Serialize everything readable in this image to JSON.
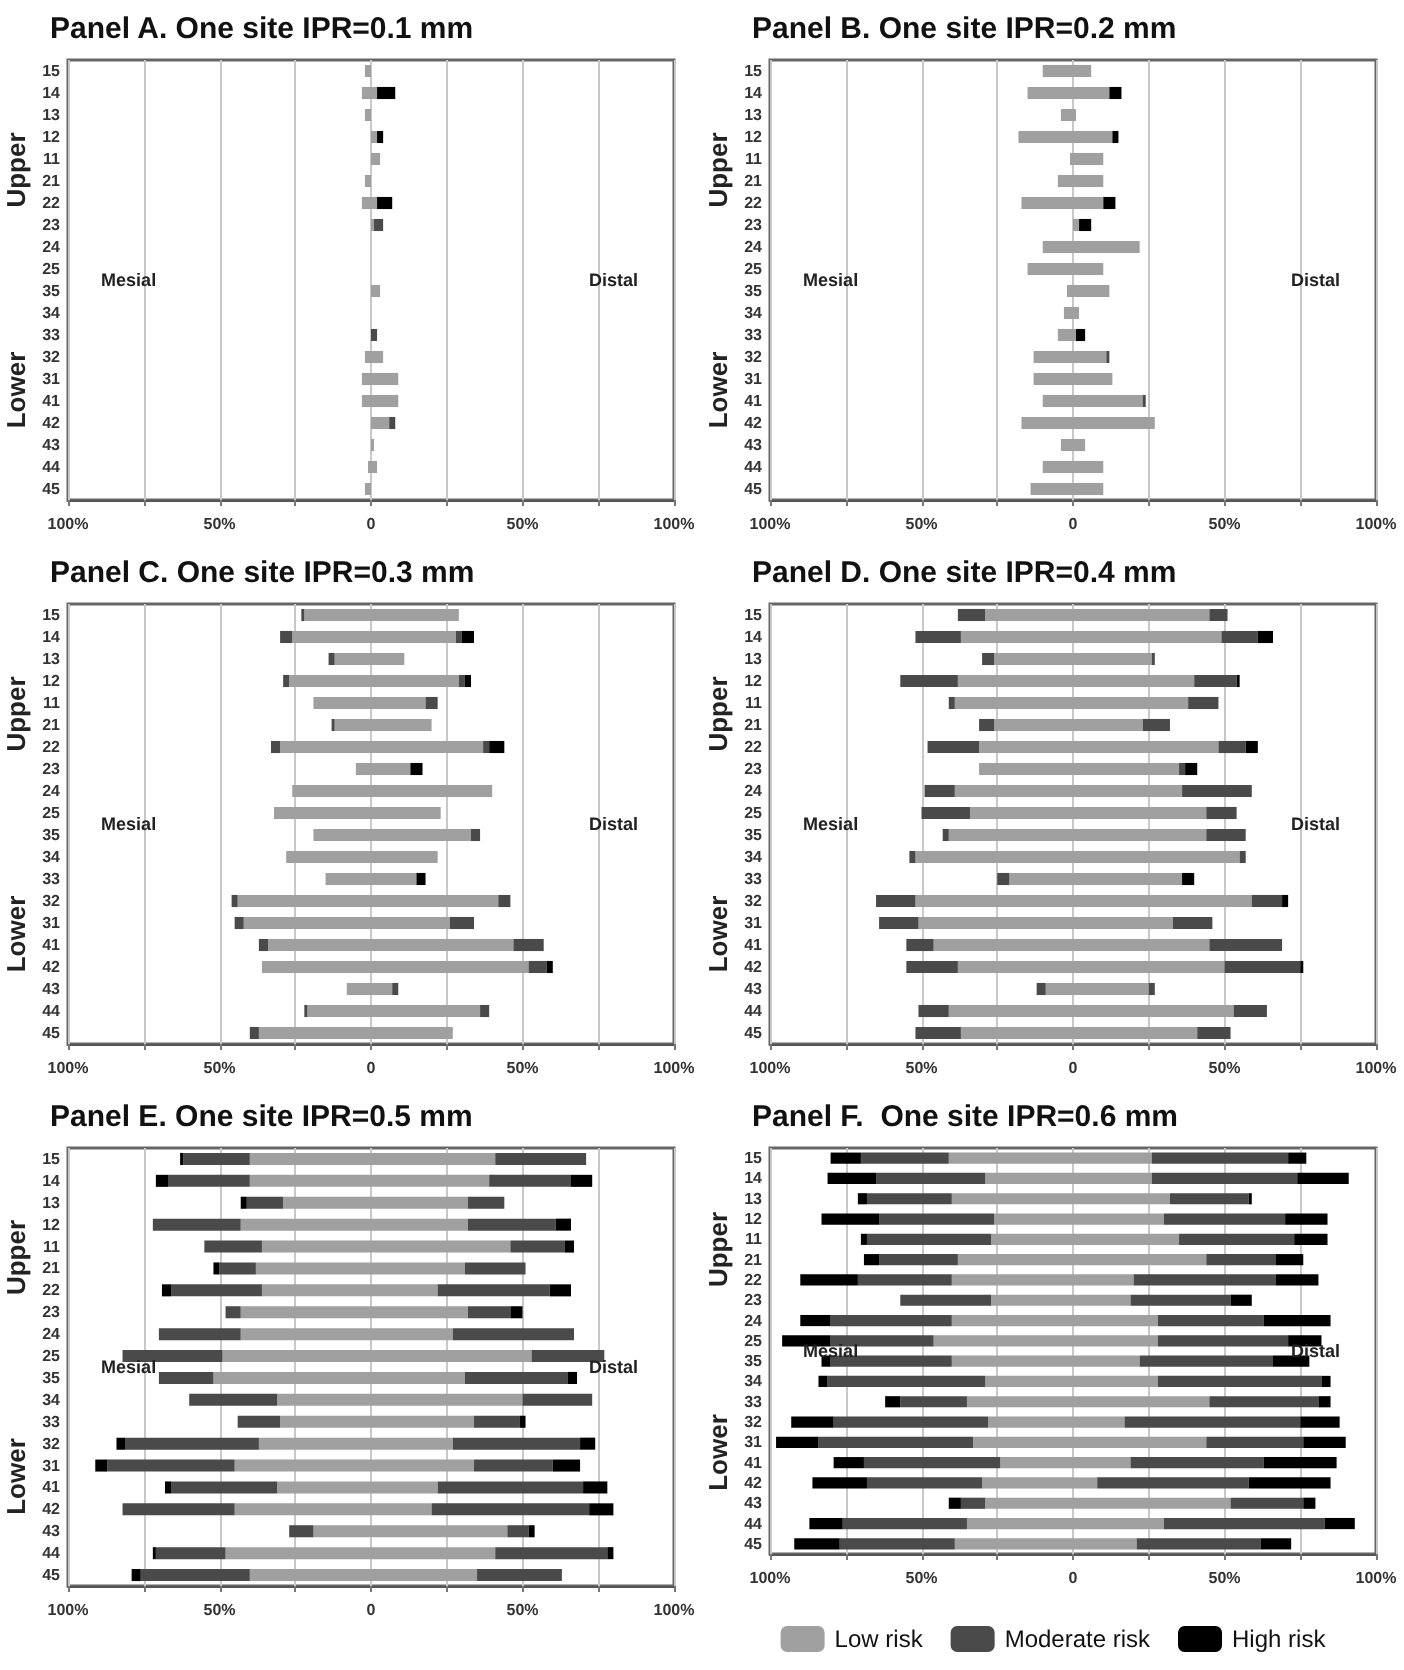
{
  "chart_data": [
    {
      "type": "bar",
      "title": "Panel A. One site IPR=0.1 mm",
      "orientation": "horizontal",
      "stacked": true,
      "grid": "x",
      "legend": false,
      "annotations": [
        "Upper",
        "Lower",
        "Mesial",
        "Distal"
      ],
      "categories": [
        "15",
        "14",
        "13",
        "12",
        "11",
        "21",
        "22",
        "23",
        "24",
        "25",
        "35",
        "34",
        "33",
        "32",
        "31",
        "41",
        "42",
        "43",
        "44",
        "45"
      ],
      "xlim": [
        -100,
        100
      ],
      "xticks": [
        {
          "value": -100,
          "label": "100%"
        },
        {
          "value": -75,
          "label": null
        },
        {
          "value": -50,
          "label": "50%"
        },
        {
          "value": -25,
          "label": null
        },
        {
          "value": 0,
          "label": "0"
        },
        {
          "value": 25,
          "label": null
        },
        {
          "value": 50,
          "label": "50%"
        },
        {
          "value": 75,
          "label": null
        },
        {
          "value": 100,
          "label": "100%"
        }
      ],
      "series": [
        {
          "color": "#a0a0a0",
          "values": [
            -2,
            -3,
            -2,
            null,
            null,
            -2,
            -3,
            null,
            null,
            null,
            null,
            null,
            null,
            -2,
            -3,
            -3,
            null,
            null,
            -1,
            -2
          ]
        },
        {
          "color": "#a0a0a0",
          "values": [
            null,
            2,
            null,
            2,
            3,
            null,
            2,
            1,
            null,
            null,
            3,
            null,
            null,
            4,
            9,
            9,
            6,
            1,
            2,
            null
          ]
        },
        {
          "color": "#4a4a4a",
          "values": [
            null,
            null,
            null,
            null,
            null,
            null,
            null,
            3,
            null,
            null,
            null,
            null,
            2,
            null,
            null,
            null,
            2,
            null,
            null,
            null
          ]
        },
        {
          "color": "#000000",
          "values": [
            null,
            6,
            null,
            2,
            null,
            null,
            5,
            null,
            null,
            null,
            null,
            null,
            null,
            null,
            null,
            null,
            null,
            null,
            null,
            null
          ]
        }
      ]
    },
    {
      "type": "bar",
      "title": "Panel B. One site IPR=0.2 mm",
      "orientation": "horizontal",
      "stacked": true,
      "grid": "x",
      "legend": false,
      "annotations": [
        "Upper",
        "Lower",
        "Mesial",
        "Distal"
      ],
      "categories": [
        "15",
        "14",
        "13",
        "12",
        "11",
        "21",
        "22",
        "23",
        "24",
        "25",
        "35",
        "34",
        "33",
        "32",
        "31",
        "41",
        "42",
        "43",
        "44",
        "45"
      ],
      "xlim": [
        -100,
        100
      ],
      "xticks": [
        {
          "value": -100,
          "label": "100%"
        },
        {
          "value": -75,
          "label": null
        },
        {
          "value": -50,
          "label": "50%"
        },
        {
          "value": -25,
          "label": null
        },
        {
          "value": 0,
          "label": "0"
        },
        {
          "value": 25,
          "label": null
        },
        {
          "value": 50,
          "label": "50%"
        },
        {
          "value": 75,
          "label": null
        },
        {
          "value": 100,
          "label": "100%"
        }
      ],
      "series": [
        {
          "color": "#a0a0a0",
          "values": [
            -10,
            -15,
            -4,
            -18,
            -1,
            -5,
            -17,
            null,
            -10,
            -15,
            -2,
            -3,
            -5,
            -13,
            -13,
            -10,
            -17,
            -4,
            -10,
            -14
          ]
        },
        {
          "color": "#a0a0a0",
          "values": [
            6,
            12,
            1,
            13,
            10,
            10,
            10,
            2,
            22,
            10,
            12,
            2,
            1,
            11,
            13,
            23,
            27,
            4,
            10,
            10
          ]
        },
        {
          "color": "#4a4a4a",
          "values": [
            null,
            null,
            null,
            null,
            null,
            null,
            null,
            null,
            null,
            null,
            null,
            null,
            null,
            1,
            null,
            1,
            null,
            null,
            null,
            null
          ]
        },
        {
          "color": "#000000",
          "values": [
            null,
            4,
            null,
            2,
            null,
            null,
            4,
            4,
            null,
            null,
            null,
            null,
            3,
            null,
            null,
            null,
            null,
            null,
            null,
            null
          ]
        }
      ]
    },
    {
      "type": "bar",
      "title": "Panel C. One site IPR=0.3 mm",
      "orientation": "horizontal",
      "stacked": true,
      "grid": "x",
      "legend": false,
      "annotations": [
        "Upper",
        "Lower",
        "Mesial",
        "Distal"
      ],
      "categories": [
        "15",
        "14",
        "13",
        "12",
        "11",
        "21",
        "22",
        "23",
        "24",
        "25",
        "35",
        "34",
        "33",
        "32",
        "31",
        "41",
        "42",
        "43",
        "44",
        "45"
      ],
      "xlim": [
        -100,
        100
      ],
      "xticks": [
        {
          "value": -100,
          "label": "100%"
        },
        {
          "value": -75,
          "label": null
        },
        {
          "value": -50,
          "label": "50%"
        },
        {
          "value": -25,
          "label": null
        },
        {
          "value": 0,
          "label": "0"
        },
        {
          "value": 25,
          "label": null
        },
        {
          "value": 50,
          "label": "50%"
        },
        {
          "value": 75,
          "label": null
        },
        {
          "value": 100,
          "label": "100%"
        }
      ],
      "series": [
        {
          "color": "#a0a0a0",
          "values": [
            -22,
            -26,
            -12,
            -27,
            -19,
            -12,
            -30,
            -5,
            -26,
            -32,
            -19,
            -28,
            -15,
            -44,
            -42,
            -34,
            -36,
            -8,
            -21,
            -37
          ]
        },
        {
          "color": "#4a4a4a",
          "values": [
            -1,
            -4,
            -2,
            -2,
            null,
            -1,
            -3,
            null,
            null,
            null,
            null,
            null,
            null,
            -2,
            -3,
            -3,
            null,
            null,
            -1,
            -3
          ]
        },
        {
          "color": "#a0a0a0",
          "values": [
            29,
            28,
            11,
            29,
            18,
            20,
            37,
            13,
            40,
            23,
            33,
            22,
            15,
            42,
            26,
            47,
            52,
            7,
            36,
            27
          ]
        },
        {
          "color": "#4a4a4a",
          "values": [
            null,
            2,
            null,
            2,
            4,
            null,
            2,
            null,
            null,
            null,
            3,
            null,
            null,
            4,
            8,
            10,
            6,
            2,
            3,
            null
          ]
        },
        {
          "color": "#000000",
          "values": [
            null,
            4,
            null,
            2,
            null,
            null,
            5,
            4,
            null,
            null,
            null,
            null,
            3,
            null,
            null,
            null,
            2,
            null,
            null,
            null
          ]
        }
      ]
    },
    {
      "type": "bar",
      "title": "Panel D. One site IPR=0.4 mm",
      "orientation": "horizontal",
      "stacked": true,
      "grid": "x",
      "legend": false,
      "annotations": [
        "Upper",
        "Lower",
        "Mesial",
        "Distal"
      ],
      "categories": [
        "15",
        "14",
        "13",
        "12",
        "11",
        "21",
        "22",
        "23",
        "24",
        "25",
        "35",
        "34",
        "33",
        "32",
        "31",
        "41",
        "42",
        "43",
        "44",
        "45"
      ],
      "xlim": [
        -100,
        100
      ],
      "xticks": [
        {
          "value": -100,
          "label": "100%"
        },
        {
          "value": -75,
          "label": null
        },
        {
          "value": -50,
          "label": "50%"
        },
        {
          "value": -25,
          "label": null
        },
        {
          "value": 0,
          "label": "0"
        },
        {
          "value": 25,
          "label": null
        },
        {
          "value": 50,
          "label": "50%"
        },
        {
          "value": 75,
          "label": null
        },
        {
          "value": 100,
          "label": "100%"
        }
      ],
      "series": [
        {
          "color": "#a0a0a0",
          "values": [
            -29,
            -37,
            -26,
            -38,
            -39,
            -26,
            -31,
            -31,
            -39,
            -34,
            -41,
            -52,
            -21,
            -52,
            -51,
            -46,
            -38,
            -9,
            -41,
            -37
          ]
        },
        {
          "color": "#4a4a4a",
          "values": [
            -9,
            -15,
            -4,
            -19,
            -2,
            -5,
            -17,
            null,
            -10,
            -16,
            -2,
            -2,
            -4,
            -13,
            -13,
            -9,
            -17,
            -3,
            -10,
            -15
          ]
        },
        {
          "color": "#a0a0a0",
          "values": [
            45,
            49,
            26,
            40,
            38,
            23,
            48,
            35,
            36,
            44,
            44,
            55,
            36,
            59,
            33,
            45,
            50,
            25,
            53,
            41
          ]
        },
        {
          "color": "#4a4a4a",
          "values": [
            6,
            12,
            1,
            14,
            10,
            9,
            9,
            2,
            23,
            10,
            13,
            2,
            null,
            10,
            13,
            24,
            25,
            2,
            11,
            11
          ]
        },
        {
          "color": "#000000",
          "values": [
            null,
            5,
            null,
            1,
            null,
            null,
            4,
            4,
            null,
            null,
            null,
            null,
            4,
            2,
            null,
            null,
            1,
            null,
            null,
            null
          ]
        }
      ]
    },
    {
      "type": "bar",
      "title": "Panel E. One site IPR=0.5 mm",
      "orientation": "horizontal",
      "stacked": true,
      "grid": "x",
      "legend": false,
      "annotations": [
        "Upper",
        "Lower",
        "Mesial",
        "Distal"
      ],
      "categories": [
        "15",
        "14",
        "13",
        "12",
        "11",
        "21",
        "22",
        "23",
        "24",
        "25",
        "35",
        "34",
        "33",
        "32",
        "31",
        "41",
        "42",
        "43",
        "44",
        "45"
      ],
      "xlim": [
        -100,
        100
      ],
      "xticks": [
        {
          "value": -100,
          "label": "100%"
        },
        {
          "value": -75,
          "label": null
        },
        {
          "value": -50,
          "label": "50%"
        },
        {
          "value": -25,
          "label": null
        },
        {
          "value": 0,
          "label": "0"
        },
        {
          "value": 25,
          "label": null
        },
        {
          "value": 50,
          "label": "50%"
        },
        {
          "value": 75,
          "label": null
        },
        {
          "value": 100,
          "label": "100%"
        }
      ],
      "series": [
        {
          "color": "#a0a0a0",
          "values": [
            -40,
            -40,
            -29,
            -43,
            -36,
            -38,
            -36,
            -43,
            -43,
            -49,
            -52,
            -31,
            -30,
            -37,
            -45,
            -31,
            -45,
            -19,
            -48,
            -40
          ]
        },
        {
          "color": "#4a4a4a",
          "values": [
            -22,
            -27,
            -12,
            -29,
            -19,
            -12,
            -30,
            -5,
            -27,
            -33,
            -18,
            -29,
            -14,
            -44,
            -42,
            -35,
            -37,
            -8,
            -23,
            -36
          ]
        },
        {
          "color": "#000000",
          "values": [
            -1,
            -4,
            -2,
            null,
            null,
            -2,
            -3,
            null,
            null,
            null,
            null,
            null,
            null,
            -3,
            -4,
            -2,
            null,
            null,
            -1,
            -3
          ]
        },
        {
          "color": "#a0a0a0",
          "values": [
            41,
            39,
            32,
            32,
            46,
            31,
            22,
            32,
            27,
            53,
            31,
            50,
            34,
            27,
            34,
            22,
            20,
            45,
            41,
            35
          ]
        },
        {
          "color": "#4a4a4a",
          "values": [
            30,
            27,
            12,
            29,
            18,
            20,
            37,
            14,
            40,
            24,
            34,
            23,
            15,
            42,
            26,
            48,
            52,
            7,
            37,
            28
          ]
        },
        {
          "color": "#000000",
          "values": [
            null,
            7,
            null,
            5,
            3,
            null,
            7,
            4,
            null,
            null,
            3,
            null,
            2,
            5,
            9,
            8,
            8,
            2,
            2,
            null
          ]
        }
      ]
    },
    {
      "type": "bar",
      "title": "Panel F.  One site IPR=0.6 mm",
      "orientation": "horizontal",
      "stacked": true,
      "grid": "x",
      "legend": "bottom",
      "annotations": [
        "Upper",
        "Lower",
        "Mesial",
        "Distal"
      ],
      "categories": [
        "15",
        "14",
        "13",
        "12",
        "11",
        "21",
        "22",
        "23",
        "24",
        "25",
        "35",
        "34",
        "33",
        "32",
        "31",
        "41",
        "42",
        "43",
        "44",
        "45"
      ],
      "xlim": [
        -100,
        100
      ],
      "xticks": [
        {
          "value": -100,
          "label": "100%"
        },
        {
          "value": -75,
          "label": null
        },
        {
          "value": -50,
          "label": "50%"
        },
        {
          "value": -25,
          "label": null
        },
        {
          "value": 0,
          "label": "0"
        },
        {
          "value": 25,
          "label": null
        },
        {
          "value": 50,
          "label": "50%"
        },
        {
          "value": 75,
          "label": null
        },
        {
          "value": 100,
          "label": "100%"
        }
      ],
      "series": [
        {
          "color": "#a0a0a0",
          "values": [
            -41,
            -29,
            -40,
            -26,
            -27,
            -38,
            -40,
            -27,
            -40,
            -46,
            -40,
            -29,
            -35,
            -28,
            -33,
            -24,
            -30,
            -29,
            -35,
            -39
          ]
        },
        {
          "color": "#4a4a4a",
          "values": [
            -29,
            -36,
            -28,
            -38,
            -41,
            -26,
            -31,
            -30,
            -40,
            -34,
            -40,
            -52,
            -22,
            -51,
            -51,
            -45,
            -38,
            -8,
            -41,
            -38
          ]
        },
        {
          "color": "#000000",
          "values": [
            -10,
            -16,
            -3,
            -19,
            -2,
            -5,
            -19,
            null,
            -10,
            -16,
            -3,
            -3,
            -5,
            -14,
            -14,
            -10,
            -18,
            -4,
            -11,
            -15
          ]
        },
        {
          "name": "Low risk",
          "color": "#a0a0a0",
          "values": [
            26,
            26,
            32,
            30,
            35,
            44,
            20,
            19,
            28,
            28,
            22,
            28,
            45,
            17,
            44,
            19,
            8,
            52,
            30,
            21
          ]
        },
        {
          "name": "Moderate risk",
          "color": "#4a4a4a",
          "values": [
            45,
            48,
            26,
            40,
            38,
            23,
            47,
            33,
            35,
            43,
            44,
            54,
            36,
            58,
            32,
            44,
            50,
            24,
            53,
            41
          ]
        },
        {
          "name": "High risk",
          "color": "#000000",
          "values": [
            6,
            17,
            1,
            14,
            11,
            9,
            14,
            7,
            22,
            11,
            12,
            3,
            4,
            13,
            14,
            24,
            27,
            4,
            10,
            10
          ]
        }
      ]
    }
  ]
}
